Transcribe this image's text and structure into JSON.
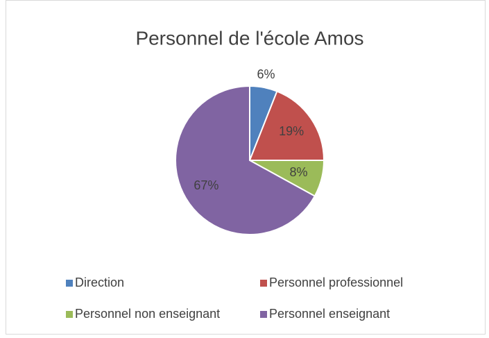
{
  "chart_data": {
    "type": "pie",
    "title": "Personnel de l'école Amos",
    "categories": [
      "Direction",
      "Personnel professionnel",
      "Personnel non enseignant",
      "Personnel enseignant"
    ],
    "values": [
      6,
      19,
      8,
      67
    ],
    "value_labels": [
      "6%",
      "19%",
      "8%",
      "67%"
    ],
    "colors": [
      "#4f81bd",
      "#c0504d",
      "#9bbb59",
      "#8064a2"
    ],
    "legend": "bottom"
  }
}
